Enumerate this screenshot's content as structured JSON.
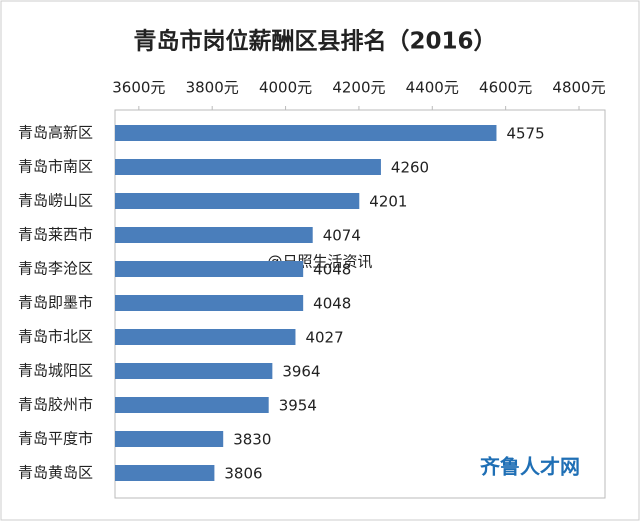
{
  "chart_data": {
    "type": "bar",
    "orientation": "horizontal",
    "title": "青岛市岗位薪酬区县排名（2016）",
    "categories": [
      "青岛高新区",
      "青岛市南区",
      "青岛崂山区",
      "青岛莱西市",
      "青岛李沧区",
      "青岛即墨市",
      "青岛市北区",
      "青岛城阳区",
      "青岛胶州市",
      "青岛平度市",
      "青岛黄岛区"
    ],
    "values": [
      4575,
      4260,
      4201,
      4074,
      4048,
      4048,
      4027,
      3964,
      3954,
      3830,
      3806
    ],
    "color": "#4a7ebb",
    "xlim": [
      3535,
      4800
    ],
    "xticks": [
      {
        "value": 3600,
        "label": "3600元"
      },
      {
        "value": 3800,
        "label": "3800元"
      },
      {
        "value": 4000,
        "label": "4000元"
      },
      {
        "value": 4200,
        "label": "4200元"
      },
      {
        "value": 4400,
        "label": "4400元"
      },
      {
        "value": 4600,
        "label": "4600元"
      },
      {
        "value": 4800,
        "label": "4800元"
      }
    ],
    "grid": false,
    "annotations": [
      "@日照生活资讯",
      "齐鲁人才网"
    ]
  }
}
